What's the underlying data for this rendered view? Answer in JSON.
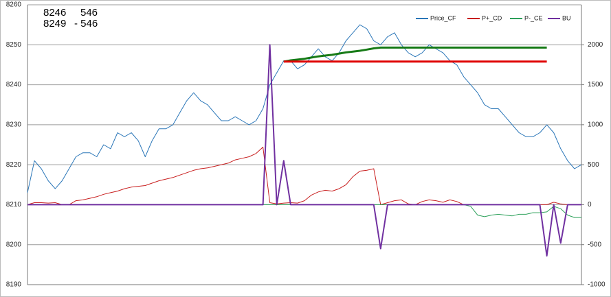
{
  "chart_data": {
    "type": "line",
    "annotations": [
      [
        "8246",
        "546"
      ],
      [
        "8249",
        "- 546"
      ]
    ],
    "ylim": [
      8190,
      8260
    ],
    "yticks": [
      8190,
      8200,
      8210,
      8220,
      8230,
      8240,
      8250,
      8260
    ],
    "y2lim": [
      -1000,
      2500
    ],
    "y2ticks": [
      -1000,
      -500,
      0,
      500,
      1000,
      1500,
      2000
    ],
    "grid": true,
    "legend": "top-right",
    "series": [
      {
        "name": "Price_CF",
        "color": "#2a76b8",
        "width": 1,
        "values": [
          8213,
          8221,
          8219,
          8216,
          8214,
          8216,
          8219,
          8222,
          8223,
          8223,
          8222,
          8225,
          8224,
          8228,
          8227,
          8228,
          8226,
          8222,
          8226,
          8229,
          8229,
          8230,
          8233,
          8236,
          8238,
          8236,
          8235,
          8233,
          8231,
          8231,
          8232,
          8231,
          8230,
          8231,
          8234,
          8240,
          8243,
          8246,
          8246,
          8244,
          8245,
          8247,
          8249,
          8247,
          8246,
          8248,
          8251,
          8253,
          8255,
          8254,
          8251,
          8250,
          8252,
          8253,
          8250,
          8248,
          8247,
          8248,
          8250,
          8249,
          8248,
          8246,
          8245,
          8242,
          8240,
          8238,
          8235,
          8234,
          8234,
          8232,
          8230,
          8228,
          8227,
          8227,
          8228,
          8230,
          8228,
          8224,
          8221,
          8219,
          8220
        ]
      },
      {
        "name": "P+_CD",
        "color": "#c81e1e",
        "width": 1,
        "axis": "y2",
        "values": [
          0,
          25,
          25,
          20,
          25,
          0,
          0,
          50,
          60,
          80,
          100,
          130,
          150,
          170,
          200,
          220,
          230,
          240,
          270,
          300,
          320,
          340,
          370,
          400,
          430,
          450,
          460,
          480,
          500,
          520,
          560,
          580,
          600,
          640,
          720,
          25,
          10,
          20,
          25,
          20,
          50,
          120,
          160,
          180,
          170,
          200,
          250,
          350,
          420,
          430,
          450,
          0,
          25,
          50,
          60,
          10,
          0,
          40,
          60,
          50,
          30,
          60,
          40,
          0,
          0,
          0,
          0,
          0,
          0,
          0,
          0,
          0,
          0,
          0,
          0,
          0,
          30,
          10,
          0,
          0,
          0
        ]
      },
      {
        "name": "P-_CE",
        "color": "#2ca05a",
        "width": 1,
        "axis": "y2",
        "values": [
          0,
          0,
          0,
          0,
          0,
          0,
          0,
          0,
          0,
          0,
          0,
          0,
          0,
          0,
          0,
          0,
          0,
          0,
          0,
          0,
          0,
          0,
          0,
          0,
          0,
          0,
          0,
          0,
          0,
          0,
          0,
          0,
          0,
          0,
          0,
          0,
          0,
          0,
          0,
          0,
          0,
          0,
          0,
          0,
          0,
          0,
          0,
          0,
          0,
          0,
          0,
          0,
          0,
          0,
          0,
          0,
          0,
          0,
          0,
          0,
          0,
          0,
          0,
          0,
          -20,
          -130,
          -150,
          -130,
          -120,
          -130,
          -140,
          -120,
          -120,
          -100,
          -100,
          -90,
          -20,
          -50,
          -130,
          -160,
          -160
        ]
      },
      {
        "name": "BU",
        "color": "#7030a0",
        "width": 2,
        "axis": "y2",
        "values": [
          0,
          0,
          0,
          0,
          0,
          0,
          0,
          0,
          0,
          0,
          0,
          0,
          0,
          0,
          0,
          0,
          0,
          0,
          0,
          0,
          0,
          0,
          0,
          0,
          0,
          0,
          0,
          0,
          0,
          0,
          0,
          0,
          0,
          0,
          0,
          2000,
          0,
          550,
          0,
          0,
          0,
          0,
          0,
          0,
          0,
          0,
          0,
          0,
          0,
          0,
          0,
          -550,
          0,
          0,
          0,
          0,
          0,
          0,
          0,
          0,
          0,
          0,
          0,
          0,
          0,
          0,
          0,
          0,
          0,
          0,
          0,
          0,
          0,
          0,
          0,
          -640,
          0,
          -480,
          0,
          0,
          0
        ]
      },
      {
        "color": "#167a16",
        "width": 3,
        "values": [
          null,
          null,
          null,
          null,
          null,
          null,
          null,
          null,
          null,
          null,
          null,
          null,
          null,
          null,
          null,
          null,
          null,
          null,
          null,
          null,
          null,
          null,
          null,
          null,
          null,
          null,
          null,
          null,
          null,
          null,
          null,
          null,
          null,
          null,
          null,
          null,
          null,
          8245.8,
          8246.1,
          8246.3,
          8246.5,
          8246.8,
          8247.1,
          8247.3,
          8247.5,
          8247.8,
          8248.1,
          8248.3,
          8248.5,
          8248.8,
          8249.1,
          8249.3,
          8249.3,
          8249.3,
          8249.3,
          8249.3,
          8249.3,
          8249.3,
          8249.3,
          8249.3,
          8249.3,
          8249.3,
          8249.3,
          8249.3,
          8249.3,
          8249.3,
          8249.3,
          8249.3,
          8249.3,
          8249.3,
          8249.3,
          8249.3,
          8249.3,
          8249.3,
          8249.3,
          8249.3,
          null,
          null,
          null,
          null,
          null
        ]
      },
      {
        "color": "#e00000",
        "width": 3,
        "values": [
          null,
          null,
          null,
          null,
          null,
          null,
          null,
          null,
          null,
          null,
          null,
          null,
          null,
          null,
          null,
          null,
          null,
          null,
          null,
          null,
          null,
          null,
          null,
          null,
          null,
          null,
          null,
          null,
          null,
          null,
          null,
          null,
          null,
          null,
          null,
          null,
          null,
          8245.8,
          8245.8,
          8245.8,
          8245.8,
          8245.8,
          8245.8,
          8245.8,
          8245.8,
          8245.8,
          8245.8,
          8245.8,
          8245.8,
          8245.8,
          8245.8,
          8245.8,
          8245.8,
          8245.8,
          8245.8,
          8245.8,
          8245.8,
          8245.8,
          8245.8,
          8245.8,
          8245.8,
          8245.8,
          8245.8,
          8245.8,
          8245.8,
          8245.8,
          8245.8,
          8245.8,
          8245.8,
          8245.8,
          8245.8,
          8245.8,
          8245.8,
          8245.8,
          8245.8,
          8245.8,
          null,
          null,
          null,
          null,
          null
        ]
      }
    ]
  }
}
